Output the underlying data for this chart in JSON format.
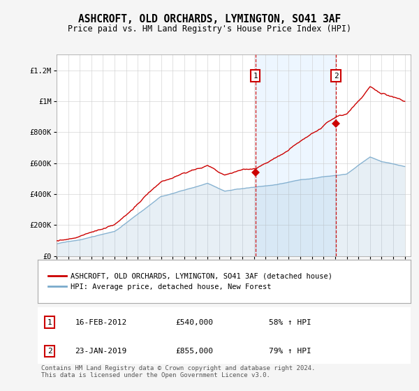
{
  "title": "ASHCROFT, OLD ORCHARDS, LYMINGTON, SO41 3AF",
  "subtitle": "Price paid vs. HM Land Registry's House Price Index (HPI)",
  "ylim": [
    0,
    1300000
  ],
  "yticks": [
    0,
    200000,
    400000,
    600000,
    800000,
    1000000,
    1200000
  ],
  "ytick_labels": [
    "£0",
    "£200K",
    "£400K",
    "£600K",
    "£800K",
    "£1M",
    "£1.2M"
  ],
  "x_start_year": 1995,
  "x_end_year": 2025,
  "plot_bg_color": "#ffffff",
  "red_line_color": "#cc0000",
  "blue_line_color": "#7aaacc",
  "sale1_year": 2012.12,
  "sale1_price": 540000,
  "sale2_year": 2019.07,
  "sale2_price": 855000,
  "sale1_label": "1",
  "sale2_label": "2",
  "sale1_date": "16-FEB-2012",
  "sale1_price_str": "£540,000",
  "sale1_pct": "58% ↑ HPI",
  "sale2_date": "23-JAN-2019",
  "sale2_price_str": "£855,000",
  "sale2_pct": "79% ↑ HPI",
  "legend_red": "ASHCROFT, OLD ORCHARDS, LYMINGTON, SO41 3AF (detached house)",
  "legend_blue": "HPI: Average price, detached house, New Forest",
  "footer": "Contains HM Land Registry data © Crown copyright and database right 2024.\nThis data is licensed under the Open Government Licence v3.0.",
  "dashed_line_color": "#cc0000",
  "shade_color": "#ddeeff",
  "fig_bg": "#f5f5f5"
}
